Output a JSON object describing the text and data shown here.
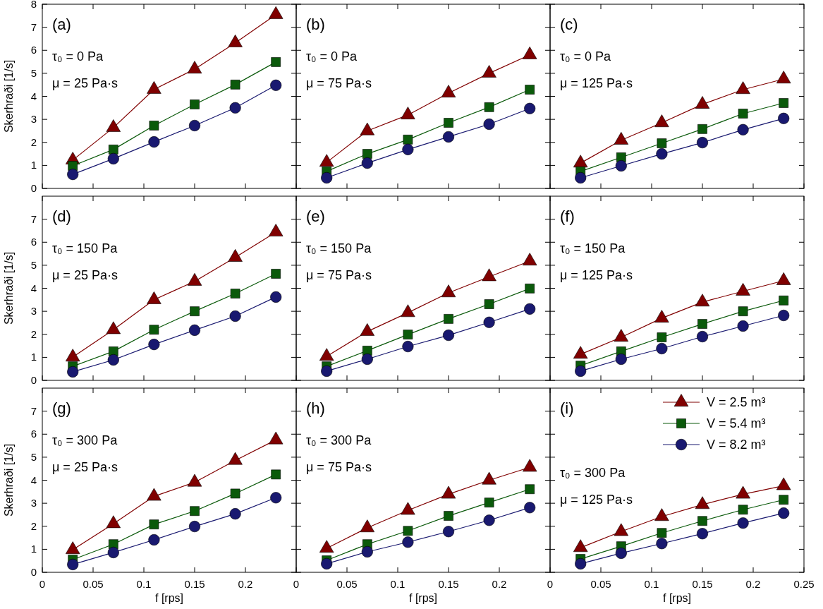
{
  "chart_data": [
    {
      "type": "line",
      "annotations": [
        "(a)",
        "τ₀ = 0 Pa",
        "μ = 25 Pa·s"
      ],
      "ylabel": "Skerhraði  [1/s]",
      "x": [
        0.03,
        0.07,
        0.11,
        0.15,
        0.19,
        0.23
      ],
      "xlim": [
        0,
        0.25
      ],
      "xticks": [
        0,
        0.05,
        0.1,
        0.15,
        0.2
      ],
      "ylim": [
        0,
        8
      ],
      "yticks": [
        0,
        1,
        2,
        3,
        4,
        5,
        6,
        7,
        8
      ],
      "tick_labels": "y",
      "series": [
        {
          "color": "#800000",
          "marker": "triangle",
          "values": [
            1.23,
            2.64,
            4.3,
            5.18,
            6.32,
            7.55
          ]
        },
        {
          "color": "#0b5a0b",
          "marker": "square",
          "values": [
            0.98,
            1.69,
            2.73,
            3.65,
            4.51,
            5.49
          ]
        },
        {
          "color": "#191970",
          "marker": "circle",
          "values": [
            0.61,
            1.29,
            2.02,
            2.73,
            3.5,
            4.48
          ]
        }
      ]
    },
    {
      "type": "line",
      "annotations": [
        "(b)",
        "τ₀ = 0 Pa",
        "μ = 75 Pa·s"
      ],
      "x": [
        0.03,
        0.07,
        0.11,
        0.15,
        0.19,
        0.23
      ],
      "xlim": [
        0,
        0.25
      ],
      "xticks": [
        0,
        0.05,
        0.1,
        0.15,
        0.2
      ],
      "ylim": [
        0,
        8
      ],
      "yticks": [
        0,
        1,
        2,
        3,
        4,
        5,
        6,
        7,
        8
      ],
      "tick_labels": false,
      "series": [
        {
          "color": "#800000",
          "marker": "triangle",
          "values": [
            1.13,
            2.5,
            3.19,
            4.14,
            5.0,
            5.8
          ]
        },
        {
          "color": "#0b5a0b",
          "marker": "square",
          "values": [
            0.74,
            1.5,
            2.12,
            2.85,
            3.53,
            4.29
          ]
        },
        {
          "color": "#191970",
          "marker": "circle",
          "values": [
            0.46,
            1.1,
            1.69,
            2.24,
            2.79,
            3.47
          ]
        }
      ]
    },
    {
      "type": "line",
      "annotations": [
        "(c)",
        "τ₀ = 0 Pa",
        "μ = 125 Pa·s"
      ],
      "x": [
        0.03,
        0.07,
        0.11,
        0.15,
        0.19,
        0.23
      ],
      "xlim": [
        0,
        0.25
      ],
      "xticks": [
        0,
        0.05,
        0.1,
        0.15,
        0.2,
        0.25
      ],
      "ylim": [
        0,
        8
      ],
      "yticks": [
        0,
        1,
        2,
        3,
        4,
        5,
        6,
        7,
        8
      ],
      "tick_labels": false,
      "series": [
        {
          "color": "#800000",
          "marker": "triangle",
          "values": [
            1.1,
            2.09,
            2.85,
            3.65,
            4.29,
            4.75
          ]
        },
        {
          "color": "#0b5a0b",
          "marker": "square",
          "values": [
            0.74,
            1.35,
            1.96,
            2.58,
            3.25,
            3.71
          ]
        },
        {
          "color": "#191970",
          "marker": "circle",
          "values": [
            0.46,
            0.98,
            1.5,
            1.99,
            2.55,
            3.04
          ]
        }
      ]
    },
    {
      "type": "line",
      "annotations": [
        "(d)",
        "τ₀ = 150 Pa",
        "μ = 25 Pa·s"
      ],
      "ylabel": "Skerhraði  [1/s]",
      "x": [
        0.03,
        0.07,
        0.11,
        0.15,
        0.19,
        0.23
      ],
      "xlim": [
        0,
        0.25
      ],
      "xticks": [
        0,
        0.05,
        0.1,
        0.15,
        0.2
      ],
      "ylim": [
        0,
        8
      ],
      "yticks": [
        0,
        1,
        2,
        3,
        4,
        5,
        6,
        7
      ],
      "tick_labels": "y",
      "series": [
        {
          "color": "#800000",
          "marker": "triangle",
          "values": [
            1.01,
            2.2,
            3.5,
            4.3,
            5.34,
            6.44
          ]
        },
        {
          "color": "#0b5a0b",
          "marker": "square",
          "values": [
            0.61,
            1.26,
            2.2,
            3.0,
            3.77,
            4.63
          ]
        },
        {
          "color": "#191970",
          "marker": "circle",
          "values": [
            0.37,
            0.89,
            1.56,
            2.18,
            2.79,
            3.62
          ]
        }
      ]
    },
    {
      "type": "line",
      "annotations": [
        "(e)",
        "τ₀ = 150 Pa",
        "μ = 75 Pa·s"
      ],
      "x": [
        0.03,
        0.07,
        0.11,
        0.15,
        0.19,
        0.23
      ],
      "xlim": [
        0,
        0.25
      ],
      "xticks": [
        0,
        0.05,
        0.1,
        0.15,
        0.2
      ],
      "ylim": [
        0,
        8
      ],
      "yticks": [
        0,
        1,
        2,
        3,
        4,
        5,
        6,
        7
      ],
      "tick_labels": false,
      "series": [
        {
          "color": "#800000",
          "marker": "triangle",
          "values": [
            1.04,
            2.12,
            2.94,
            3.8,
            4.5,
            5.18
          ]
        },
        {
          "color": "#0b5a0b",
          "marker": "square",
          "values": [
            0.61,
            1.29,
            1.99,
            2.67,
            3.31,
            3.99
          ]
        },
        {
          "color": "#191970",
          "marker": "circle",
          "values": [
            0.4,
            0.92,
            1.47,
            1.96,
            2.52,
            3.1
          ]
        }
      ]
    },
    {
      "type": "line",
      "annotations": [
        "(f)",
        "τ₀ = 150 Pa",
        "μ = 125 Pa·s"
      ],
      "x": [
        0.03,
        0.07,
        0.11,
        0.15,
        0.19,
        0.23
      ],
      "xlim": [
        0,
        0.25
      ],
      "xticks": [
        0,
        0.05,
        0.1,
        0.15,
        0.2,
        0.25
      ],
      "ylim": [
        0,
        8
      ],
      "yticks": [
        0,
        1,
        2,
        3,
        4,
        5,
        6,
        7
      ],
      "tick_labels": false,
      "series": [
        {
          "color": "#800000",
          "marker": "triangle",
          "values": [
            1.13,
            1.87,
            2.7,
            3.4,
            3.87,
            4.33
          ]
        },
        {
          "color": "#0b5a0b",
          "marker": "square",
          "values": [
            0.64,
            1.26,
            1.87,
            2.45,
            3.0,
            3.47
          ]
        },
        {
          "color": "#191970",
          "marker": "circle",
          "values": [
            0.4,
            0.92,
            1.38,
            1.9,
            2.36,
            2.82
          ]
        }
      ]
    },
    {
      "type": "line",
      "annotations": [
        "(g)",
        "τ₀ = 300 Pa",
        "μ = 25 Pa·s"
      ],
      "ylabel": "Skerhraði  [1/s]",
      "xlabel": "f [rps]",
      "x": [
        0.03,
        0.07,
        0.11,
        0.15,
        0.19,
        0.23
      ],
      "xlim": [
        0,
        0.25
      ],
      "xticks": [
        0,
        0.05,
        0.1,
        0.15,
        0.2
      ],
      "ylim": [
        0,
        8
      ],
      "yticks": [
        0,
        1,
        2,
        3,
        4,
        5,
        6,
        7
      ],
      "series": [
        {
          "color": "#800000",
          "marker": "triangle",
          "values": [
            0.98,
            2.11,
            3.3,
            3.91,
            4.86,
            5.75
          ]
        },
        {
          "color": "#0b5a0b",
          "marker": "square",
          "values": [
            0.55,
            1.22,
            2.08,
            2.66,
            3.42,
            4.25
          ]
        },
        {
          "color": "#191970",
          "marker": "circle",
          "values": [
            0.34,
            0.86,
            1.41,
            1.99,
            2.54,
            3.24
          ]
        }
      ]
    },
    {
      "type": "line",
      "annotations": [
        "(h)",
        "τ₀ = 300 Pa",
        "μ = 75 Pa·s"
      ],
      "xlabel": "f [rps]",
      "x": [
        0.03,
        0.07,
        0.11,
        0.15,
        0.19,
        0.23
      ],
      "xlim": [
        0,
        0.25
      ],
      "xticks": [
        0,
        0.05,
        0.1,
        0.15,
        0.2
      ],
      "ylim": [
        0,
        8
      ],
      "yticks": [
        0,
        1,
        2,
        3,
        4,
        5,
        6,
        7
      ],
      "tick_labels": "x",
      "series": [
        {
          "color": "#800000",
          "marker": "triangle",
          "values": [
            1.04,
            1.93,
            2.69,
            3.39,
            4.0,
            4.56
          ]
        },
        {
          "color": "#0b5a0b",
          "marker": "square",
          "values": [
            0.52,
            1.22,
            1.8,
            2.45,
            3.03,
            3.61
          ]
        },
        {
          "color": "#191970",
          "marker": "circle",
          "values": [
            0.37,
            0.89,
            1.31,
            1.77,
            2.26,
            2.81
          ]
        }
      ]
    },
    {
      "type": "line",
      "annotations": [
        "(i)",
        "τ₀ = 300 Pa",
        "μ = 125 Pa·s"
      ],
      "xlabel": "f [rps]",
      "x": [
        0.03,
        0.07,
        0.11,
        0.15,
        0.19,
        0.23
      ],
      "xlim": [
        0,
        0.25
      ],
      "xticks": [
        0,
        0.05,
        0.1,
        0.15,
        0.2,
        0.25
      ],
      "ylim": [
        0,
        8
      ],
      "yticks": [
        0,
        1,
        2,
        3,
        4,
        5,
        6,
        7
      ],
      "tick_labels": "x",
      "legend": "top right",
      "series": [
        {
          "name": "V = 2.5 m³",
          "color": "#800000",
          "marker": "triangle",
          "values": [
            1.07,
            1.77,
            2.42,
            2.94,
            3.39,
            3.76
          ]
        },
        {
          "name": "V = 5.4 m³",
          "color": "#0b5a0b",
          "marker": "square",
          "values": [
            0.58,
            1.13,
            1.71,
            2.23,
            2.72,
            3.15
          ]
        },
        {
          "name": "V = 8.2 m³",
          "color": "#191970",
          "marker": "circle",
          "values": [
            0.37,
            0.83,
            1.25,
            1.68,
            2.14,
            2.57
          ]
        }
      ]
    }
  ]
}
